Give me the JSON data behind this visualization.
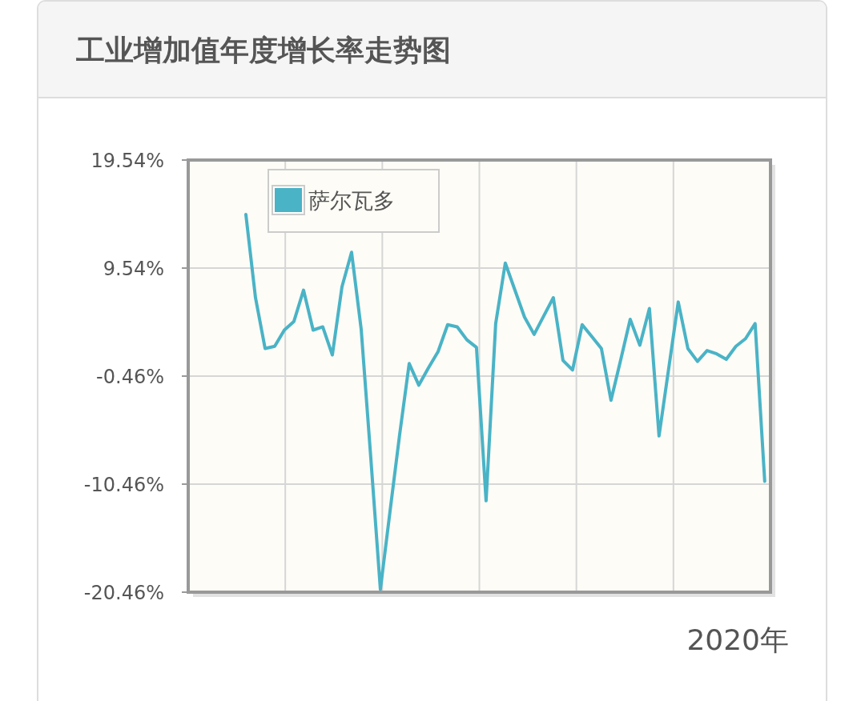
{
  "chart_data": {
    "type": "line",
    "title": "工业增加值年度增长率走势图",
    "categories": [
      null,
      null,
      null,
      null,
      null,
      null,
      null,
      null,
      null,
      null,
      null,
      null,
      null,
      null,
      null,
      null,
      null,
      null,
      null,
      null,
      null,
      null,
      null,
      null,
      null,
      null,
      null,
      null,
      null,
      null,
      null,
      null,
      null,
      null,
      null,
      null,
      null,
      null,
      null,
      null,
      null,
      null,
      null,
      null,
      null,
      null,
      null,
      null,
      null,
      null,
      null,
      null,
      null,
      null,
      null
    ],
    "series": [
      {
        "name": "萨尔瓦多",
        "color": "#4ab3c6",
        "values": [
          14.5,
          6.8,
          2.1,
          2.3,
          3.8,
          4.6,
          7.5,
          3.8,
          4.1,
          1.5,
          7.8,
          11.0,
          3.9,
          -8.0,
          -20.2,
          -13.0,
          -5.9,
          0.7,
          -1.3,
          0.3,
          1.8,
          4.3,
          4.1,
          2.9,
          2.2,
          -12.0,
          4.4,
          10.0,
          7.5,
          5.0,
          3.4,
          5.1,
          6.8,
          1.0,
          0.1,
          4.3,
          3.2,
          2.1,
          -2.7,
          1.0,
          4.8,
          2.4,
          5.8,
          -6.0,
          0.2,
          6.4,
          2.1,
          0.9,
          1.9,
          1.6,
          1.1,
          2.3,
          3.0,
          4.4,
          -10.2
        ]
      }
    ],
    "ylim": [
      -20.46,
      19.54
    ],
    "yticks": [
      {
        "value": -20.46,
        "label": "-20.46%"
      },
      {
        "value": -10.46,
        "label": "-10.46%"
      },
      {
        "value": -0.46,
        "label": "-0.46%"
      },
      {
        "value": 9.54,
        "label": "9.54%"
      },
      {
        "value": 19.54,
        "label": "19.54%"
      }
    ],
    "grid": true,
    "legend": "top left",
    "tick_labels": "y",
    "marker": "none",
    "line_style": "solid",
    "annotations": [
      "2020年"
    ]
  }
}
